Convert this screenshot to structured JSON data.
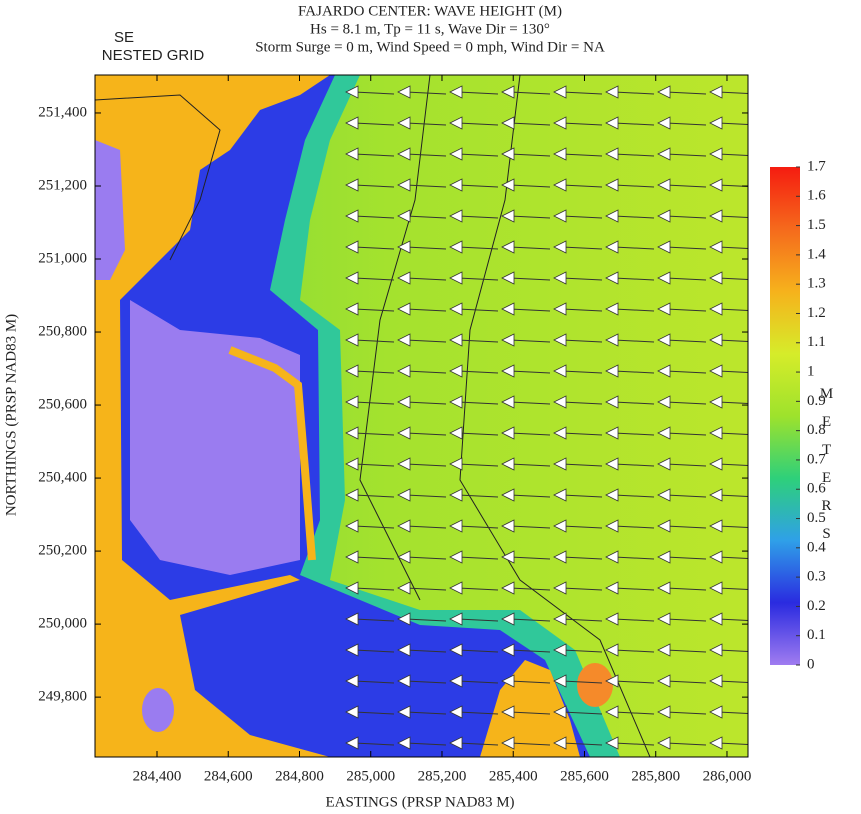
{
  "title": {
    "lines": [
      "FAJARDO CENTER: WAVE HEIGHT (M)",
      "Hs = 8.1 m, Tp = 11 s, Wave Dir = 130°",
      "Storm Surge = 0 m, Wind Speed = 0 mph, Wind Dir = NA"
    ]
  },
  "grid_label": {
    "line1": "SE",
    "line2": "NESTED GRID"
  },
  "x_axis": {
    "label": "EASTINGS (PRSP NAD83 M)",
    "lim": [
      284226,
      286059
    ],
    "ticks": [
      {
        "value": 284400,
        "label": "284,400"
      },
      {
        "value": 284600,
        "label": "284,600"
      },
      {
        "value": 284800,
        "label": "284,800"
      },
      {
        "value": 285000,
        "label": "285,000"
      },
      {
        "value": 285200,
        "label": "285,200"
      },
      {
        "value": 285400,
        "label": "285,400"
      },
      {
        "value": 285600,
        "label": "285,600"
      },
      {
        "value": 285800,
        "label": "285,800"
      },
      {
        "value": 286000,
        "label": "286,000"
      }
    ]
  },
  "y_axis": {
    "label": "NORTHINGS (PRSP NAD83 M)",
    "lim": [
      249636,
      251504
    ],
    "ticks": [
      {
        "value": 249800,
        "label": "249,800"
      },
      {
        "value": 250000,
        "label": "250,000"
      },
      {
        "value": 250200,
        "label": "250,200"
      },
      {
        "value": 250400,
        "label": "250,400"
      },
      {
        "value": 250600,
        "label": "250,600"
      },
      {
        "value": 250800,
        "label": "250,800"
      },
      {
        "value": 251000,
        "label": "251,000"
      },
      {
        "value": 251200,
        "label": "251,200"
      },
      {
        "value": 251400,
        "label": "251,400"
      }
    ]
  },
  "colorbar": {
    "label": "METERS",
    "lim": [
      0,
      1.7
    ],
    "ticks": [
      0,
      0.1,
      0.2,
      0.3,
      0.4,
      0.5,
      0.6,
      0.7,
      0.8,
      0.9,
      1,
      1.1,
      1.2,
      1.3,
      1.4,
      1.5,
      1.6,
      1.7
    ],
    "colors": [
      "#a07cf0",
      "#2a2be0",
      "#2fa0e8",
      "#2ed07a",
      "#9ee22c",
      "#d6ec2a",
      "#f6b21c",
      "#f56a1c",
      "#f51c10"
    ]
  }
}
